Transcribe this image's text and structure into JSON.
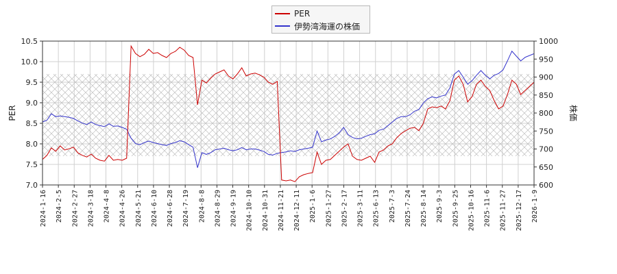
{
  "chart_data": {
    "type": "line",
    "title": "",
    "xlabel": "",
    "ylabel_left": "PER",
    "ylabel_right": "株価",
    "ylim_left": [
      7.0,
      10.5
    ],
    "ylim_right": [
      600,
      1000
    ],
    "yticks_left": [
      "7.0",
      "7.5",
      "8.0",
      "8.5",
      "9.0",
      "9.5",
      "10.0",
      "10.5"
    ],
    "yticks_right": [
      "600",
      "650",
      "700",
      "750",
      "800",
      "850",
      "900",
      "950",
      "1000"
    ],
    "xticks": [
      "2024-1-16",
      "2024-2-5",
      "2024-2-27",
      "2024-3-18",
      "2024-4-8",
      "2024-4-26",
      "2024-5-21",
      "2024-6-10",
      "2024-6-28",
      "2024-7-19",
      "2024-8-8",
      "2024-8-29",
      "2024-9-19",
      "2024-10-10",
      "2024-10-31",
      "2024-11-21",
      "2024-12-11",
      "2025-1-6",
      "2025-1-27",
      "2025-2-17",
      "2025-3-11",
      "2025-6-13",
      "2025-7-3",
      "2025-7-24",
      "2025-8-14",
      "2025-9-3",
      "2025-9-25",
      "2025-10-16",
      "2025-11-6",
      "2025-11-27",
      "2025-12-17",
      "2026-1-9"
    ],
    "grid": true,
    "legend_position": "top-center",
    "shaded_band": {
      "y_left_from": 7.7,
      "y_left_to": 9.7,
      "pattern": "crosshatch"
    },
    "series": [
      {
        "name": "PER",
        "axis": "left",
        "color": "#cc0000",
        "values": [
          7.62,
          7.72,
          7.9,
          7.82,
          7.95,
          7.85,
          7.88,
          7.92,
          7.78,
          7.72,
          7.68,
          7.75,
          7.65,
          7.6,
          7.58,
          7.72,
          7.6,
          7.62,
          7.6,
          7.65,
          10.38,
          10.2,
          10.12,
          10.18,
          10.3,
          10.2,
          10.22,
          10.15,
          10.1,
          10.2,
          10.25,
          10.35,
          10.28,
          10.15,
          10.1,
          8.95,
          9.55,
          9.48,
          9.6,
          9.7,
          9.75,
          9.8,
          9.65,
          9.58,
          9.7,
          9.85,
          9.65,
          9.7,
          9.72,
          9.68,
          9.62,
          9.5,
          9.45,
          9.52,
          7.12,
          7.1,
          7.12,
          7.08,
          7.2,
          7.25,
          7.28,
          7.3,
          7.8,
          7.5,
          7.6,
          7.62,
          7.72,
          7.82,
          7.92,
          8.0,
          7.7,
          7.62,
          7.6,
          7.65,
          7.7,
          7.55,
          7.8,
          7.85,
          7.95,
          8.0,
          8.15,
          8.25,
          8.32,
          8.38,
          8.4,
          8.32,
          8.5,
          8.85,
          8.9,
          8.88,
          8.92,
          8.85,
          9.05,
          9.55,
          9.65,
          9.45,
          9.02,
          9.15,
          9.45,
          9.55,
          9.4,
          9.3,
          9.05,
          8.85,
          8.92,
          9.2,
          9.55,
          9.45,
          9.2,
          9.3,
          9.4,
          9.5
        ]
      },
      {
        "name": "伊勢湾海運の株価",
        "axis": "right",
        "color": "#3333cc",
        "values": [
          775,
          780,
          798,
          790,
          792,
          790,
          788,
          785,
          778,
          772,
          768,
          775,
          768,
          765,
          762,
          770,
          763,
          764,
          760,
          755,
          730,
          715,
          712,
          718,
          722,
          718,
          715,
          712,
          710,
          715,
          718,
          723,
          720,
          712,
          705,
          648,
          690,
          685,
          690,
          698,
          700,
          702,
          698,
          695,
          698,
          704,
          698,
          700,
          700,
          697,
          693,
          685,
          683,
          688,
          690,
          692,
          695,
          693,
          698,
          700,
          702,
          705,
          750,
          720,
          725,
          728,
          735,
          745,
          760,
          740,
          732,
          728,
          730,
          735,
          740,
          742,
          752,
          755,
          765,
          775,
          785,
          790,
          790,
          795,
          805,
          810,
          828,
          840,
          845,
          842,
          847,
          850,
          870,
          908,
          918,
          900,
          880,
          890,
          905,
          918,
          905,
          895,
          905,
          910,
          920,
          945,
          972,
          958,
          945,
          955,
          960,
          965
        ]
      }
    ]
  }
}
